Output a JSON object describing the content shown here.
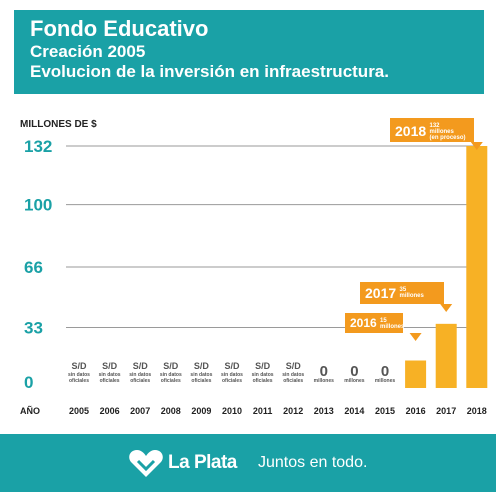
{
  "header": {
    "title": "Fondo Educativo",
    "subtitle": "Creación 2005",
    "subtitle2": "Evolucion de la inversión en infraestructura."
  },
  "chart_data": {
    "type": "bar",
    "ylabel": "MILLONES DE $",
    "xlabel": "AÑO",
    "yticks": [
      0,
      33,
      66,
      100,
      132
    ],
    "ylim": [
      0,
      132
    ],
    "categories": [
      "2005",
      "2006",
      "2007",
      "2008",
      "2009",
      "2010",
      "2011",
      "2012",
      "2013",
      "2014",
      "2015",
      "2016",
      "2017",
      "2018"
    ],
    "values": [
      null,
      null,
      null,
      null,
      null,
      null,
      null,
      null,
      0,
      0,
      0,
      15,
      35,
      132
    ],
    "bar_labels": [
      {
        "big": "S/D",
        "small": [
          "sin datos",
          "oficiales"
        ]
      },
      {
        "big": "S/D",
        "small": [
          "sin datos",
          "oficiales"
        ]
      },
      {
        "big": "S/D",
        "small": [
          "sin datos",
          "oficiales"
        ]
      },
      {
        "big": "S/D",
        "small": [
          "sin datos",
          "oficiales"
        ]
      },
      {
        "big": "S/D",
        "small": [
          "sin datos",
          "oficiales"
        ]
      },
      {
        "big": "S/D",
        "small": [
          "sin datos",
          "oficiales"
        ]
      },
      {
        "big": "S/D",
        "small": [
          "sin datos",
          "oficiales"
        ]
      },
      {
        "big": "S/D",
        "small": [
          "sin datos",
          "oficiales"
        ]
      },
      {
        "big": "0",
        "small": [
          "millones"
        ]
      },
      {
        "big": "0",
        "small": [
          "millones"
        ]
      },
      {
        "big": "0",
        "small": [
          "millones"
        ]
      },
      null,
      null,
      null
    ],
    "callouts": [
      {
        "year": "2016",
        "value": "15",
        "unit": "millones",
        "note": ""
      },
      {
        "year": "2017",
        "value": "35",
        "unit": "millones",
        "note": ""
      },
      {
        "year": "2018",
        "value": "132",
        "unit": "millones",
        "note": "(en proceso)"
      }
    ],
    "grid": true,
    "bar_color": "#f7b125",
    "callout_color": "#f39a1e",
    "accent_color": "#1aa1a6"
  },
  "footer": {
    "brand": "La Plata",
    "slogan": "Juntos en todo.",
    "logo_icon": "heart-icon"
  }
}
